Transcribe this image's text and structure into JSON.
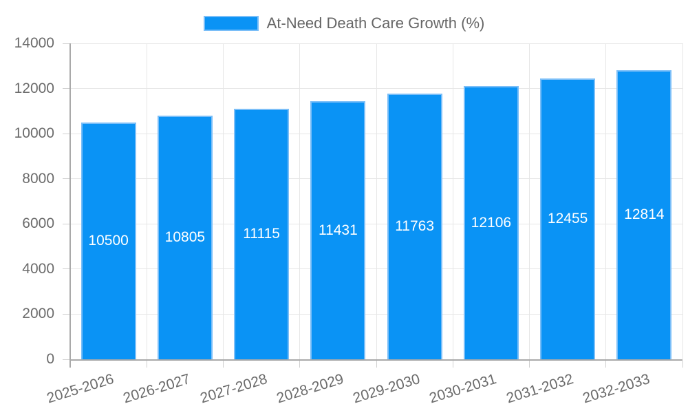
{
  "legend": {
    "label": "At-Need Death Care Growth (%)"
  },
  "chart_data": {
    "type": "bar",
    "title": "",
    "legend_position": "top",
    "categories": [
      "2025-2026",
      "2026-2027",
      "2027-2028",
      "2028-2029",
      "2029-2030",
      "2030-2031",
      "2031-2032",
      "2032-2033"
    ],
    "series": [
      {
        "name": "At-Need Death Care Growth (%)",
        "color": "#0a93f5",
        "border_color": "#7abef8",
        "values": [
          10500,
          10805,
          11115,
          11431,
          11763,
          12106,
          12455,
          12814
        ]
      }
    ],
    "value_labels_position": "inside-center",
    "xlabel": "",
    "ylabel": "",
    "ylim": [
      0,
      14000
    ],
    "yticks": [
      0,
      2000,
      4000,
      6000,
      8000,
      10000,
      12000,
      14000
    ],
    "grid": true,
    "x_tick_rotation_deg": -17
  },
  "colors": {
    "background": "#ffffff",
    "grid": "#e6e6e6",
    "axis": "#a9a9a9",
    "tick": "#cfcfcf",
    "tick_text": "#6b6b6b",
    "value_label_text": "#ffffff"
  }
}
